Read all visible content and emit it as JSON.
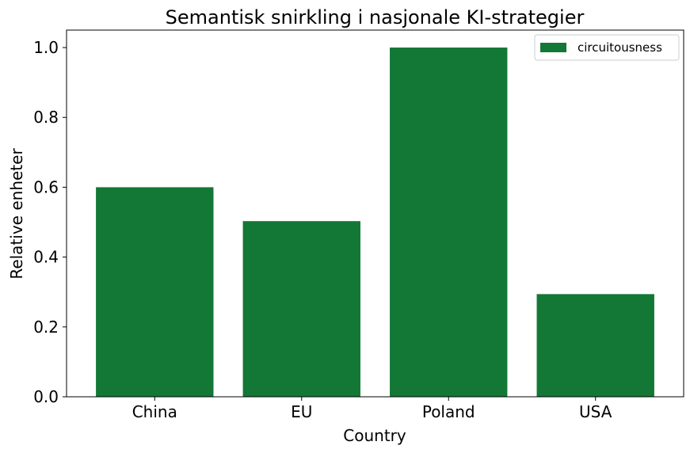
{
  "chart_data": {
    "type": "bar",
    "title": "Semantisk snirkling i nasjonale KI-strategier",
    "xlabel": "Country",
    "ylabel": "Relative enheter",
    "categories": [
      "China",
      "EU",
      "Poland",
      "USA"
    ],
    "series": [
      {
        "name": "circuitousness",
        "values": [
          0.6,
          0.503,
          1.0,
          0.294
        ],
        "color": "#137735"
      }
    ],
    "ylim": [
      0,
      1.05
    ],
    "yticks": [
      "0.0",
      "0.2",
      "0.4",
      "0.6",
      "0.8",
      "1.0"
    ],
    "grid": false,
    "legend_position": "top-right"
  }
}
